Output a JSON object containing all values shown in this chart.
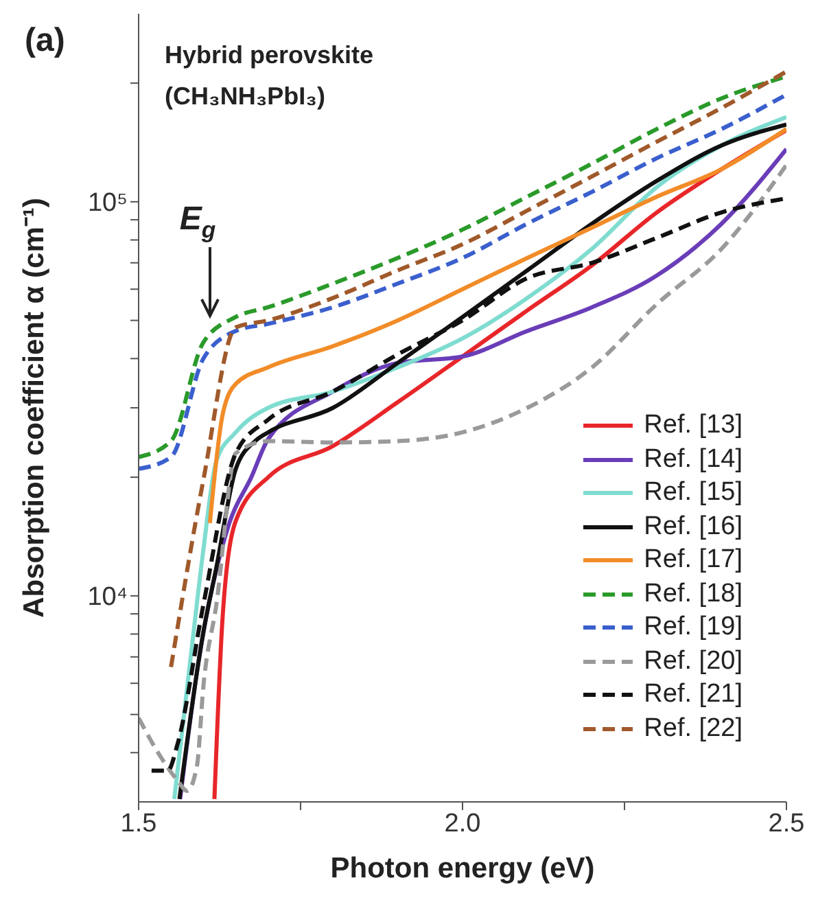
{
  "chart_data": {
    "type": "line",
    "xlabel": "Photon energy (eV)",
    "ylabel": "Absorption coefficient α (cm⁻¹)",
    "annotations": [
      "(a)",
      "Hybrid perovskite",
      "(CH₃NH₃PbI₃)",
      {
        "text": "E$_{g}$",
        "x": 1.61,
        "y": 45000
      }
    ],
    "log": "y",
    "xlim": [
      1.5,
      2.5
    ],
    "ylim": [
      3000,
      300000
    ],
    "xticks": [
      {
        "value": 1.5,
        "label": "1.5"
      },
      {
        "value": 1.75,
        "label": null
      },
      {
        "value": 2,
        "label": "2.0"
      },
      {
        "value": 2.25,
        "label": null
      },
      {
        "value": 2.5,
        "label": "2.5"
      }
    ],
    "yticks": [
      {
        "value": 4000,
        "label": null
      },
      {
        "value": 5000,
        "label": null
      },
      {
        "value": 6000,
        "label": null
      },
      {
        "value": 7000,
        "label": null
      },
      {
        "value": 8000,
        "label": null
      },
      {
        "value": 9000,
        "label": null
      },
      {
        "value": 10000,
        "label": "10⁴"
      },
      {
        "value": 20000,
        "label": null
      },
      {
        "value": 30000,
        "label": null
      },
      {
        "value": 40000,
        "label": null
      },
      {
        "value": 50000,
        "label": null
      },
      {
        "value": 60000,
        "label": null
      },
      {
        "value": 70000,
        "label": null
      },
      {
        "value": 80000,
        "label": null
      },
      {
        "value": 90000,
        "label": null
      },
      {
        "value": 100000,
        "label": "10⁵"
      },
      {
        "value": 200000,
        "label": null
      }
    ],
    "grid": false,
    "legend": "bottom right",
    "marker": "none",
    "series": [
      {
        "name": "Ref. [13]",
        "color": "#e8262a",
        "line_style": "solid",
        "x": [
          1.617,
          1.63,
          1.65,
          1.7,
          1.8,
          1.9,
          2.0,
          2.1,
          2.2,
          2.3,
          2.4,
          2.5
        ],
        "values": [
          3050,
          9000,
          15500,
          20000,
          24000,
          31000,
          40500,
          53000,
          69000,
          94000,
          121000,
          152000
        ]
      },
      {
        "name": "Ref. [14]",
        "color": "#6a3db8",
        "line_style": "solid",
        "x": [
          1.564,
          1.593,
          1.64,
          1.674,
          1.7,
          1.8,
          1.9,
          2.0,
          2.1,
          2.2,
          2.3,
          2.4,
          2.5
        ],
        "values": [
          3050,
          6900,
          15300,
          20000,
          25000,
          33000,
          39000,
          40500,
          47000,
          54000,
          65000,
          88000,
          136000
        ]
      },
      {
        "name": "Ref. [15]",
        "color": "#7fdcd0",
        "line_style": "solid",
        "x": [
          1.555,
          1.58,
          1.6,
          1.62,
          1.65,
          1.7,
          1.8,
          1.9,
          2.0,
          2.1,
          2.2,
          2.3,
          2.4,
          2.5
        ],
        "values": [
          3050,
          6900,
          13100,
          22000,
          26000,
          30000,
          33000,
          38000,
          45000,
          57000,
          76000,
          109000,
          139000,
          164000
        ]
      },
      {
        "name": "Ref. [16]",
        "color": "#111111",
        "line_style": "solid",
        "x": [
          1.563,
          1.6,
          1.62,
          1.65,
          1.68,
          1.7,
          1.8,
          1.9,
          2.0,
          2.1,
          2.2,
          2.3,
          2.4,
          2.5
        ],
        "values": [
          3050,
          8100,
          11800,
          21000,
          24700,
          26000,
          30000,
          39000,
          51000,
          67000,
          88000,
          113000,
          139000,
          157000
        ]
      },
      {
        "name": "Ref. [17]",
        "color": "#f28c28",
        "line_style": "solid",
        "x": [
          1.61,
          1.63,
          1.65,
          1.7,
          1.8,
          1.9,
          2.0,
          2.1,
          2.2,
          2.3,
          2.4,
          2.5
        ],
        "values": [
          15300,
          29000,
          34500,
          38000,
          43000,
          50000,
          60000,
          72000,
          86000,
          103000,
          121000,
          153000
        ]
      },
      {
        "name": "Ref. [18]",
        "color": "#2a9a2a",
        "line_style": "dashed",
        "x": [
          1.5,
          1.55,
          1.6,
          1.65,
          1.7,
          1.8,
          1.9,
          2.0,
          2.1,
          2.2,
          2.3,
          2.4,
          2.5
        ],
        "values": [
          22500,
          24700,
          44000,
          51000,
          54000,
          62000,
          72000,
          85000,
          103000,
          125000,
          153000,
          183000,
          208000
        ]
      },
      {
        "name": "Ref. [19]",
        "color": "#3a5fcd",
        "line_style": "dashed",
        "x": [
          1.5,
          1.55,
          1.6,
          1.65,
          1.7,
          1.8,
          1.9,
          2.0,
          2.1,
          2.2,
          2.3,
          2.4,
          2.5
        ],
        "values": [
          21000,
          22500,
          40000,
          47000,
          49000,
          54000,
          62000,
          72000,
          88000,
          106000,
          129000,
          153000,
          187000
        ]
      },
      {
        "name": "Ref. [20]",
        "color": "#9a9a9a",
        "line_style": "dashed",
        "x": [
          1.5,
          1.53,
          1.56,
          1.575,
          1.59,
          1.6,
          1.62,
          1.65,
          1.7,
          1.8,
          1.9,
          2.0,
          2.1,
          2.2,
          2.3,
          2.4,
          2.5
        ],
        "values": [
          4900,
          4000,
          3400,
          3200,
          3700,
          5900,
          9500,
          23000,
          24700,
          24500,
          24700,
          26000,
          30000,
          38000,
          55000,
          76000,
          124000
        ]
      },
      {
        "name": "Ref. [21]",
        "color": "#111111",
        "line_style": "dashed",
        "x": [
          1.52,
          1.545,
          1.56,
          1.6,
          1.65,
          1.7,
          1.8,
          1.9,
          2.0,
          2.1,
          2.2,
          2.3,
          2.4,
          2.5
        ],
        "values": [
          3600,
          3600,
          4200,
          9500,
          23000,
          28000,
          33000,
          41000,
          50000,
          64000,
          70000,
          81000,
          94000,
          102000
        ]
      },
      {
        "name": "Ref. [22]",
        "color": "#a0592a",
        "line_style": "dashed",
        "x": [
          1.55,
          1.6,
          1.65,
          1.7,
          1.8,
          1.9,
          2.0,
          2.1,
          2.2,
          2.3,
          2.4,
          2.5
        ],
        "values": [
          6600,
          19700,
          48000,
          50000,
          57000,
          67000,
          78000,
          95000,
          116000,
          142000,
          173000,
          214000
        ]
      }
    ]
  }
}
